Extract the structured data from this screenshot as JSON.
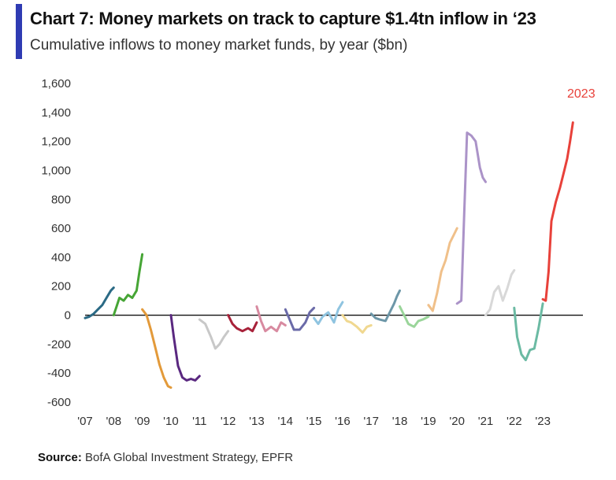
{
  "title": "Chart 7: Money markets on track to capture $1.4tn inflow in ‘23",
  "subtitle": "Cumulative inflows to money market funds, by year ($bn)",
  "source_label": "Source:",
  "source_text": "BofA Global Investment Strategy, EPFR",
  "colors": {
    "accent": "#2f3bb3",
    "highlight": "#e8413a"
  },
  "chart_data": {
    "type": "line",
    "title": "Chart 7: Money markets on track to capture $1.4tn inflow in ‘23",
    "ylabel": "",
    "xlabel": "",
    "ylim": [
      -600,
      1600
    ],
    "yticks": [
      "1,600",
      "1,400",
      "1,200",
      "1,000",
      "800",
      "600",
      "400",
      "200",
      "0",
      "-200",
      "-400",
      "-600"
    ],
    "xticks": [
      "'07",
      "'08",
      "'09",
      "'10",
      "'11",
      "'12",
      "'13",
      "'14",
      "'15",
      "'16",
      "'17",
      "'18",
      "'19",
      "'20",
      "'21",
      "'22",
      "'23"
    ],
    "annotation": "2023",
    "series": [
      {
        "color": "#2b6a85",
        "points": [
          [
            2007.0,
            -20
          ],
          [
            2007.15,
            -10
          ],
          [
            2007.3,
            10
          ],
          [
            2007.45,
            40
          ],
          [
            2007.6,
            70
          ],
          [
            2007.75,
            120
          ],
          [
            2007.9,
            170
          ],
          [
            2008.0,
            190
          ]
        ]
      },
      {
        "color": "#46a535",
        "points": [
          [
            2008.0,
            0
          ],
          [
            2008.1,
            60
          ],
          [
            2008.2,
            120
          ],
          [
            2008.35,
            100
          ],
          [
            2008.5,
            140
          ],
          [
            2008.65,
            120
          ],
          [
            2008.8,
            170
          ],
          [
            2008.9,
            300
          ],
          [
            2009.0,
            420
          ]
        ]
      },
      {
        "color": "#e39a3a",
        "points": [
          [
            2009.0,
            40
          ],
          [
            2009.15,
            0
          ],
          [
            2009.3,
            -100
          ],
          [
            2009.45,
            -220
          ],
          [
            2009.6,
            -340
          ],
          [
            2009.75,
            -430
          ],
          [
            2009.9,
            -490
          ],
          [
            2010.0,
            -500
          ]
        ]
      },
      {
        "color": "#5a2880",
        "points": [
          [
            2010.0,
            0
          ],
          [
            2010.1,
            -150
          ],
          [
            2010.25,
            -350
          ],
          [
            2010.4,
            -430
          ],
          [
            2010.55,
            -450
          ],
          [
            2010.7,
            -440
          ],
          [
            2010.85,
            -450
          ],
          [
            2011.0,
            -420
          ]
        ]
      },
      {
        "color": "#c8c8c8",
        "points": [
          [
            2011.0,
            -30
          ],
          [
            2011.2,
            -60
          ],
          [
            2011.4,
            -150
          ],
          [
            2011.55,
            -230
          ],
          [
            2011.7,
            -200
          ],
          [
            2011.85,
            -150
          ],
          [
            2012.0,
            -110
          ]
        ]
      },
      {
        "color": "#a8223a",
        "points": [
          [
            2012.0,
            0
          ],
          [
            2012.15,
            -60
          ],
          [
            2012.3,
            -90
          ],
          [
            2012.5,
            -110
          ],
          [
            2012.7,
            -90
          ],
          [
            2012.85,
            -110
          ],
          [
            2013.0,
            -50
          ]
        ]
      },
      {
        "color": "#d88aa0",
        "points": [
          [
            2013.0,
            60
          ],
          [
            2013.15,
            -40
          ],
          [
            2013.3,
            -110
          ],
          [
            2013.5,
            -80
          ],
          [
            2013.7,
            -110
          ],
          [
            2013.85,
            -50
          ],
          [
            2014.0,
            -70
          ]
        ]
      },
      {
        "color": "#6a6aa8",
        "points": [
          [
            2014.0,
            40
          ],
          [
            2014.15,
            -30
          ],
          [
            2014.3,
            -100
          ],
          [
            2014.5,
            -100
          ],
          [
            2014.7,
            -50
          ],
          [
            2014.85,
            20
          ],
          [
            2015.0,
            50
          ]
        ]
      },
      {
        "color": "#8fc4e0",
        "points": [
          [
            2015.0,
            -20
          ],
          [
            2015.15,
            -60
          ],
          [
            2015.3,
            -10
          ],
          [
            2015.5,
            20
          ],
          [
            2015.7,
            -50
          ],
          [
            2015.85,
            40
          ],
          [
            2016.0,
            90
          ]
        ]
      },
      {
        "color": "#f0d890",
        "points": [
          [
            2016.0,
            0
          ],
          [
            2016.15,
            -40
          ],
          [
            2016.3,
            -50
          ],
          [
            2016.5,
            -80
          ],
          [
            2016.7,
            -120
          ],
          [
            2016.85,
            -80
          ],
          [
            2017.0,
            -70
          ]
        ]
      },
      {
        "color": "#6d97a8",
        "points": [
          [
            2017.0,
            10
          ],
          [
            2017.15,
            -20
          ],
          [
            2017.3,
            -30
          ],
          [
            2017.5,
            -40
          ],
          [
            2017.65,
            20
          ],
          [
            2017.8,
            80
          ],
          [
            2017.9,
            130
          ],
          [
            2018.0,
            170
          ]
        ]
      },
      {
        "color": "#9ad59a",
        "points": [
          [
            2018.0,
            60
          ],
          [
            2018.15,
            0
          ],
          [
            2018.3,
            -60
          ],
          [
            2018.5,
            -80
          ],
          [
            2018.65,
            -40
          ],
          [
            2018.8,
            -30
          ],
          [
            2019.0,
            -10
          ]
        ]
      },
      {
        "color": "#f0c08a",
        "points": [
          [
            2019.0,
            70
          ],
          [
            2019.15,
            30
          ],
          [
            2019.3,
            150
          ],
          [
            2019.45,
            300
          ],
          [
            2019.6,
            380
          ],
          [
            2019.75,
            500
          ],
          [
            2019.9,
            560
          ],
          [
            2020.0,
            600
          ]
        ]
      },
      {
        "color": "#ab93c8",
        "points": [
          [
            2020.0,
            80
          ],
          [
            2020.15,
            100
          ],
          [
            2020.25,
            700
          ],
          [
            2020.35,
            1260
          ],
          [
            2020.5,
            1240
          ],
          [
            2020.65,
            1200
          ],
          [
            2020.8,
            1020
          ],
          [
            2020.9,
            950
          ],
          [
            2021.0,
            920
          ]
        ]
      },
      {
        "color": "#d8d8d8",
        "points": [
          [
            2021.0,
            0
          ],
          [
            2021.15,
            40
          ],
          [
            2021.3,
            160
          ],
          [
            2021.45,
            200
          ],
          [
            2021.6,
            100
          ],
          [
            2021.75,
            180
          ],
          [
            2021.9,
            280
          ],
          [
            2022.0,
            310
          ]
        ]
      },
      {
        "color": "#6bbaa3",
        "points": [
          [
            2022.0,
            50
          ],
          [
            2022.1,
            -150
          ],
          [
            2022.25,
            -270
          ],
          [
            2022.4,
            -310
          ],
          [
            2022.55,
            -240
          ],
          [
            2022.7,
            -230
          ],
          [
            2022.85,
            -90
          ],
          [
            2023.0,
            80
          ]
        ]
      },
      {
        "color": "#e8413a",
        "points": [
          [
            2023.0,
            110
          ],
          [
            2023.1,
            100
          ],
          [
            2023.2,
            300
          ],
          [
            2023.3,
            650
          ],
          [
            2023.45,
            780
          ],
          [
            2023.6,
            880
          ],
          [
            2023.75,
            1000
          ],
          [
            2023.85,
            1080
          ],
          [
            2023.95,
            1200
          ],
          [
            2024.05,
            1330
          ]
        ]
      }
    ]
  }
}
